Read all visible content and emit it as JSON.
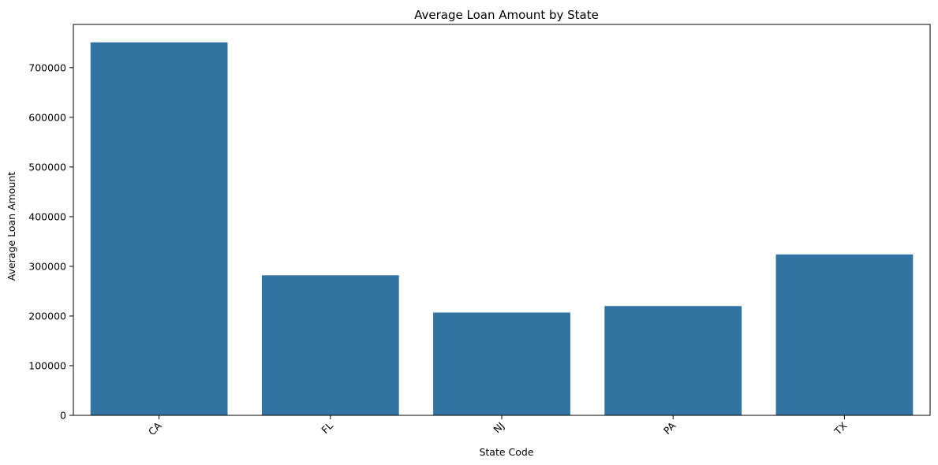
{
  "chart_data": {
    "type": "bar",
    "title": "Average Loan Amount by State",
    "xlabel": "State Code",
    "ylabel": "Average Loan Amount",
    "categories": [
      "CA",
      "FL",
      "NJ",
      "PA",
      "TX"
    ],
    "values": [
      751000,
      282000,
      207000,
      220000,
      324000
    ],
    "ylim": [
      0,
      787000
    ],
    "yticks": [
      0,
      100000,
      200000,
      300000,
      400000,
      500000,
      600000,
      700000
    ],
    "grid": false,
    "legend": "none",
    "bar_color": "#3274a1",
    "xtick_rotation": "45"
  }
}
